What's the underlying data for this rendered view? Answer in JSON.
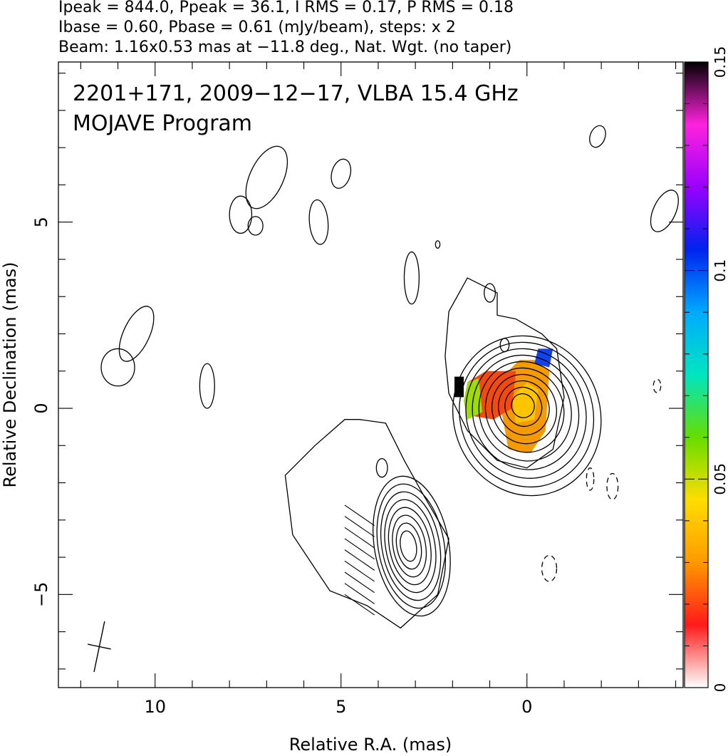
{
  "chart_data": {
    "type": "contour",
    "header_lines": [
      "Ipeak = 844.0, Ppeak = 36.1, I RMS = 0.17, P RMS = 0.18",
      "Ibase = 0.60, Pbase = 0.61 (mJy/beam), steps: x 2",
      "Beam: 1.16x0.53 mas at −11.8 deg., Nat. Wgt. (no taper)"
    ],
    "annotation_lines": [
      "2201+171, 2009−12−17, VLBA 15.4 GHz",
      "MOJAVE Program"
    ],
    "xlabel": "Relative R.A. (mas)",
    "ylabel": "Relative Declination (mas)",
    "xlim": [
      12.6,
      -4.2
    ],
    "ylim": [
      -7.5,
      9.3
    ],
    "x_ticks": [
      10,
      5,
      0
    ],
    "x_tick_labels": [
      "10",
      "5",
      "0"
    ],
    "y_ticks": [
      5,
      0,
      -5
    ],
    "y_tick_labels": [
      "5",
      "0",
      "−5"
    ],
    "colorbar": {
      "range": [
        0,
        0.15
      ],
      "ticks": [
        0,
        0.05,
        0.1,
        0.15
      ],
      "tick_labels": [
        "0",
        "0.05",
        "0.1",
        "0.15"
      ],
      "colors": [
        "#ffffff",
        "#ff1a1a",
        "#ff9900",
        "#ffdd00",
        "#66dd00",
        "#00e5c0",
        "#00aaff",
        "#0022ee",
        "#9900ff",
        "#ff22dd",
        "#000000"
      ]
    },
    "core": {
      "x": 0.0,
      "y": 0.1,
      "contour_levels": 10
    },
    "knot": {
      "x": 3.1,
      "y": -3.7,
      "contour_levels": 8
    },
    "beam": {
      "major_mas": 1.16,
      "minor_mas": 0.53,
      "pa_deg": -11.8,
      "x": 11.5,
      "y": -6.4
    }
  }
}
